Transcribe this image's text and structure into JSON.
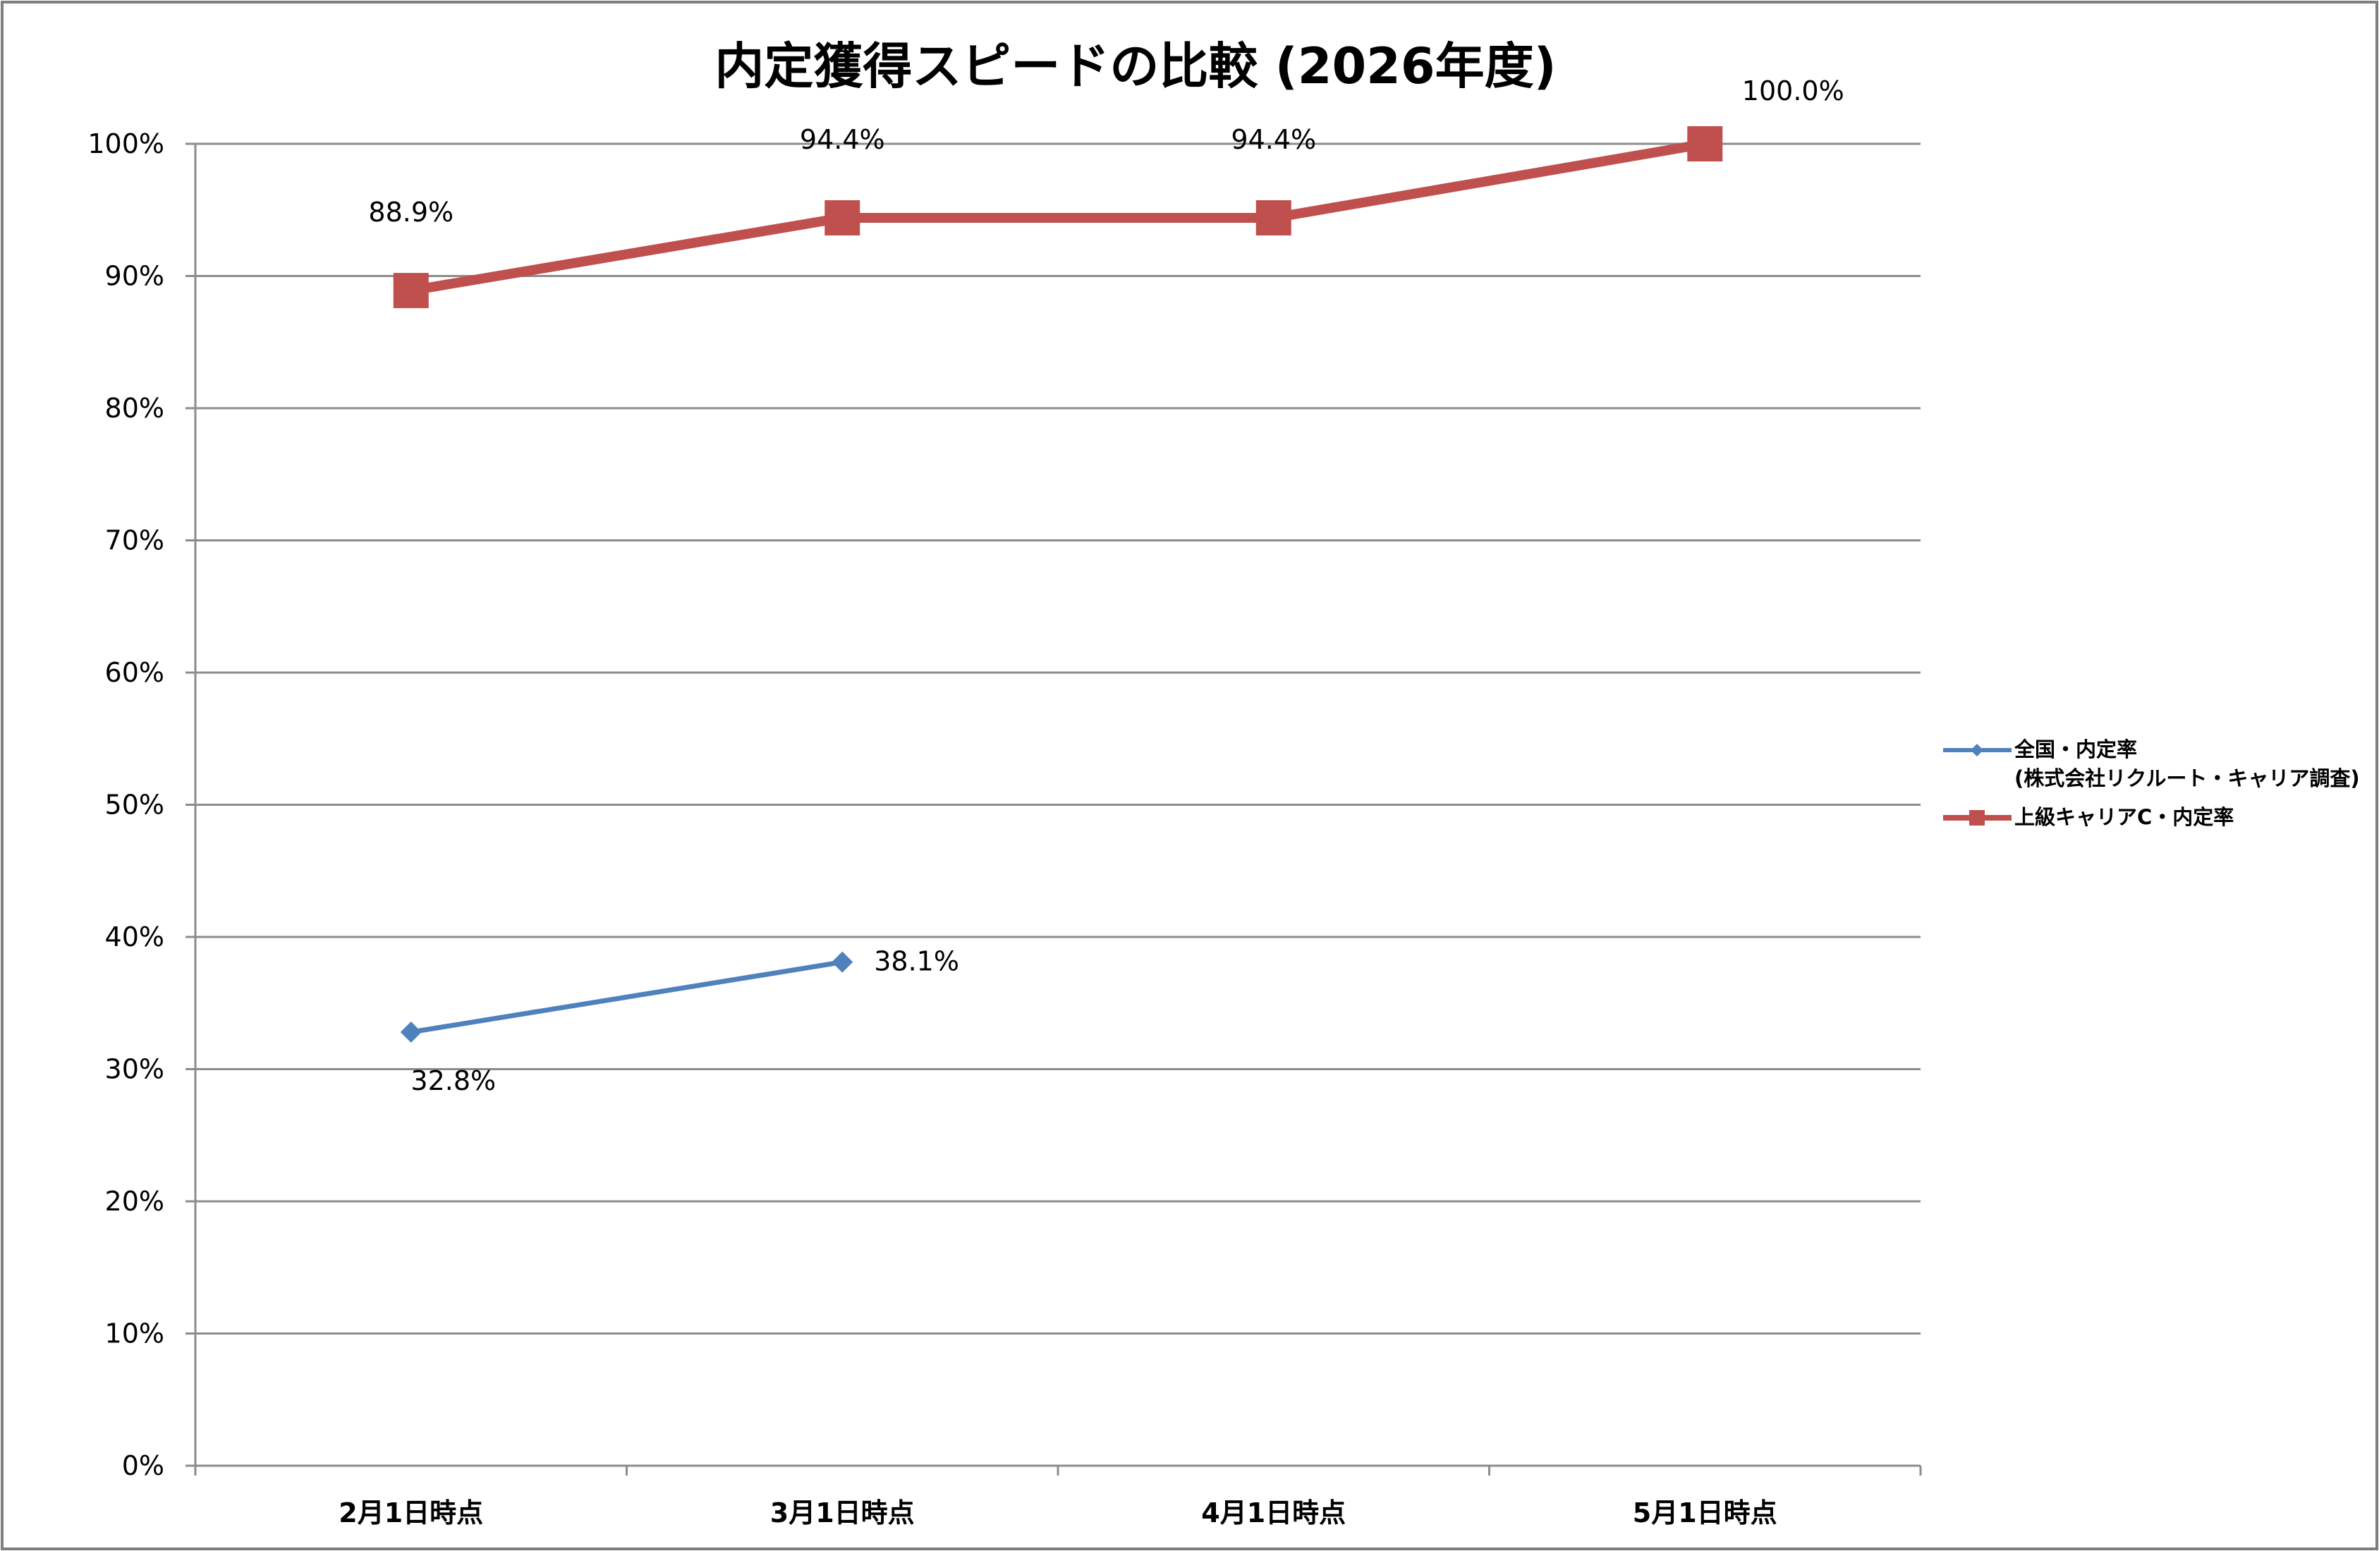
{
  "chart_data": {
    "type": "line",
    "title": "内定獲得スピードの比較 (2026年度)",
    "xlabel": "",
    "ylabel": "",
    "categories": [
      "2月1日時点",
      "3月1日時点",
      "4月1日時点",
      "5月1日時点"
    ],
    "ylim": [
      0,
      100
    ],
    "y_ticks": [
      0,
      10,
      20,
      30,
      40,
      50,
      60,
      70,
      80,
      90,
      100
    ],
    "y_tick_labels": [
      "0%",
      "10%",
      "20%",
      "30%",
      "40%",
      "50%",
      "60%",
      "70%",
      "80%",
      "90%",
      "100%"
    ],
    "grid": true,
    "legend_position": "right",
    "series": [
      {
        "name": "全国・内定率\n(株式会社リクルート・キャリア調査)",
        "legend_lines": [
          "全国・内定率",
          "(株式会社リクルート・キャリア調査)"
        ],
        "color": "#4F81BD",
        "marker": "diamond",
        "values": [
          32.8,
          38.1,
          null,
          null
        ],
        "labels": [
          "32.8%",
          "38.1%",
          "",
          ""
        ],
        "label_positions": [
          "below",
          "right",
          "",
          ""
        ]
      },
      {
        "name": "上級キャリアC・内定率",
        "legend_lines": [
          "上級キャリアC・内定率"
        ],
        "color": "#C0504D",
        "marker": "square",
        "values": [
          88.9,
          94.4,
          94.4,
          100.0
        ],
        "labels": [
          "88.9%",
          "94.4%",
          "94.4%",
          "100.0%"
        ],
        "label_positions": [
          "above",
          "above",
          "above",
          "above-right"
        ]
      }
    ]
  }
}
